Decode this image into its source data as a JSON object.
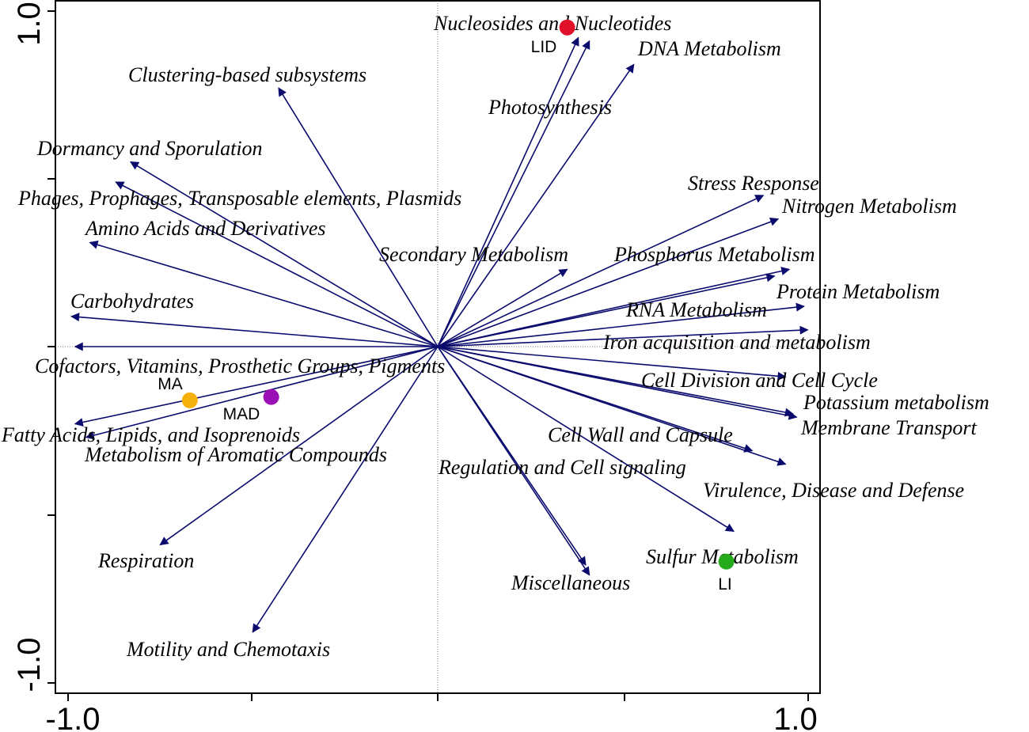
{
  "chart_data": {
    "type": "scatter",
    "subtype": "biplot",
    "xlim": [
      -1.0,
      1.0
    ],
    "ylim": [
      -1.0,
      1.0
    ],
    "x_tick_labels": [
      "-1.0",
      "1.0"
    ],
    "y_tick_labels": [
      "-1.0",
      "1.0"
    ],
    "grid": false,
    "zero_lines": true,
    "arrow_color": "#0b0b6e",
    "arrows": [
      {
        "name": "Nucleosides and Nucleotides",
        "x": 0.38,
        "y": 0.92
      },
      {
        "name": "Photosynthesis",
        "x": 0.41,
        "y": 0.91
      },
      {
        "name": "DNA Metabolism",
        "x": 0.53,
        "y": 0.84
      },
      {
        "name": "Clustering-based subsystems",
        "x": -0.43,
        "y": 0.77
      },
      {
        "name": "Dormancy and Sporulation",
        "x": -0.83,
        "y": 0.55
      },
      {
        "name": "Phages, Prophages, Transposable elements, Plasmids",
        "x": -0.87,
        "y": 0.49
      },
      {
        "name": "Amino Acids and Derivatives",
        "x": -0.94,
        "y": 0.31
      },
      {
        "name": "Carbohydrates",
        "x": -0.99,
        "y": 0.09
      },
      {
        "name": "Cofactors, Vitamins, Prosthetic Groups, Pigments",
        "x": -0.98,
        "y": 0.0
      },
      {
        "name": "Fatty Acids, Lipids, and Isoprenoids",
        "x": -0.98,
        "y": -0.23
      },
      {
        "name": "Metabolism of Aromatic Compounds",
        "x": -0.95,
        "y": -0.27
      },
      {
        "name": "Respiration",
        "x": -0.75,
        "y": -0.59
      },
      {
        "name": "Motility and Chemotaxis",
        "x": -0.5,
        "y": -0.85
      },
      {
        "name": "Secondary Metabolism",
        "x": 0.35,
        "y": 0.23
      },
      {
        "name": "Stress Response",
        "x": 0.88,
        "y": 0.45
      },
      {
        "name": "Nitrogen Metabolism",
        "x": 0.92,
        "y": 0.38
      },
      {
        "name": "Phosphorus Metabolism",
        "x": 0.91,
        "y": 0.21
      },
      {
        "name": "Protein Metabolism",
        "x": 0.95,
        "y": 0.23
      },
      {
        "name": "RNA Metabolism",
        "x": 0.99,
        "y": 0.12
      },
      {
        "name": "Iron acquisition and metabolism",
        "x": 1.0,
        "y": 0.05
      },
      {
        "name": "Cell Division and Cell Cycle",
        "x": 0.94,
        "y": -0.09
      },
      {
        "name": "Potassium metabolism",
        "x": 0.96,
        "y": -0.2
      },
      {
        "name": "Membrane Transport",
        "x": 0.97,
        "y": -0.21
      },
      {
        "name": "Cell Wall and Capsule",
        "x": 0.85,
        "y": -0.31
      },
      {
        "name": "Virulence, Disease and Defense",
        "x": 0.94,
        "y": -0.35
      },
      {
        "name": "Regulation and Cell signaling",
        "x": 0.8,
        "y": -0.55
      },
      {
        "name": "Sulfur Metabolism",
        "x": 0.41,
        "y": -0.68
      },
      {
        "name": "Miscellaneous",
        "x": 0.4,
        "y": -0.65
      }
    ],
    "sites": [
      {
        "name": "LID",
        "x": 0.35,
        "y": 0.95,
        "color": "#e0102a"
      },
      {
        "name": "MA",
        "x": -0.67,
        "y": -0.16,
        "color": "#f5b20e"
      },
      {
        "name": "MAD",
        "x": -0.45,
        "y": -0.15,
        "color": "#9b10b4"
      },
      {
        "name": "LI",
        "x": 0.78,
        "y": -0.64,
        "color": "#25aa1c"
      }
    ]
  }
}
